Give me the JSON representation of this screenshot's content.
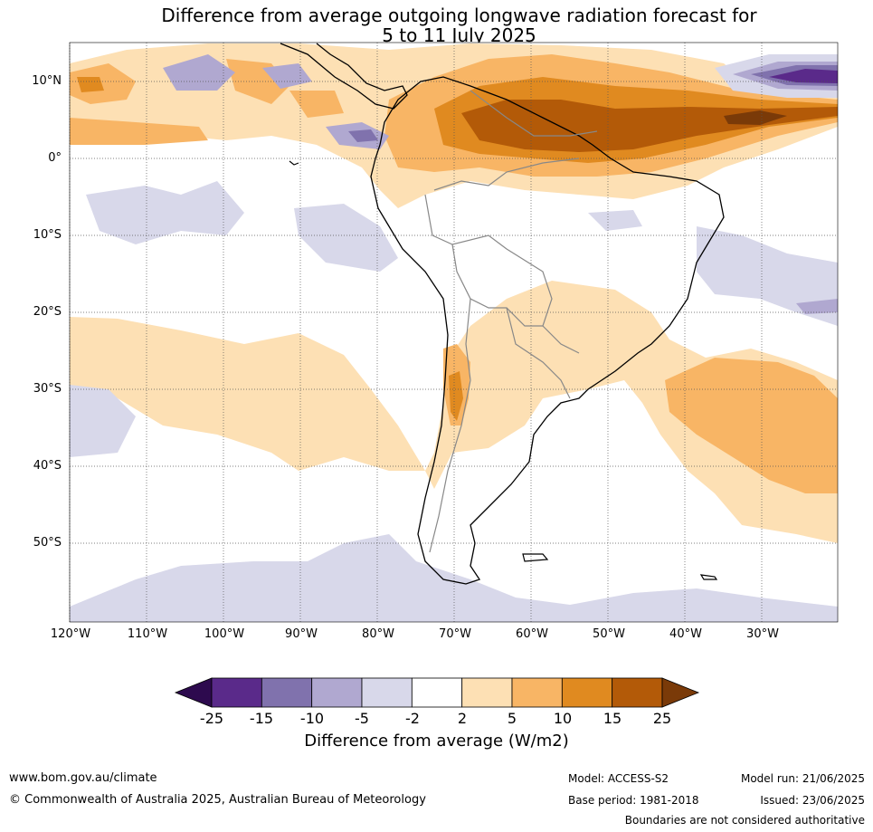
{
  "title": {
    "line1": "Difference from average outgoing longwave radiation forecast for",
    "line2": "5 to 11 July 2025"
  },
  "map": {
    "lat_labels": [
      "10°N",
      "0°",
      "10°S",
      "20°S",
      "30°S",
      "40°S",
      "50°S"
    ],
    "lon_labels": [
      "120°W",
      "110°W",
      "100°W",
      "90°W",
      "80°W",
      "70°W",
      "60°W",
      "50°W",
      "40°W",
      "30°W"
    ]
  },
  "legend": {
    "ticks": [
      "-25",
      "-15",
      "-10",
      "-5",
      "-2",
      "2",
      "5",
      "10",
      "15",
      "25"
    ],
    "label": "Difference from average (W/m2)",
    "colors": [
      "#2d0a4e",
      "#5a2a8a",
      "#8072ad",
      "#b0a8d0",
      "#d8d8ea",
      "#ffffff",
      "#fde0b4",
      "#f8b565",
      "#e08a20",
      "#b35a08",
      "#7a3a08"
    ]
  },
  "footer": {
    "website": "www.bom.gov.au/climate",
    "copyright": "© Commonwealth of Australia 2025, Australian Bureau of Meteorology",
    "model": "Model: ACCESS-S2",
    "base_period": "Base period: 1981-2018",
    "model_run": "Model run: 21/06/2025",
    "issued": "Issued: 23/06/2025",
    "disclaimer": "Boundaries are not considered authoritative"
  }
}
